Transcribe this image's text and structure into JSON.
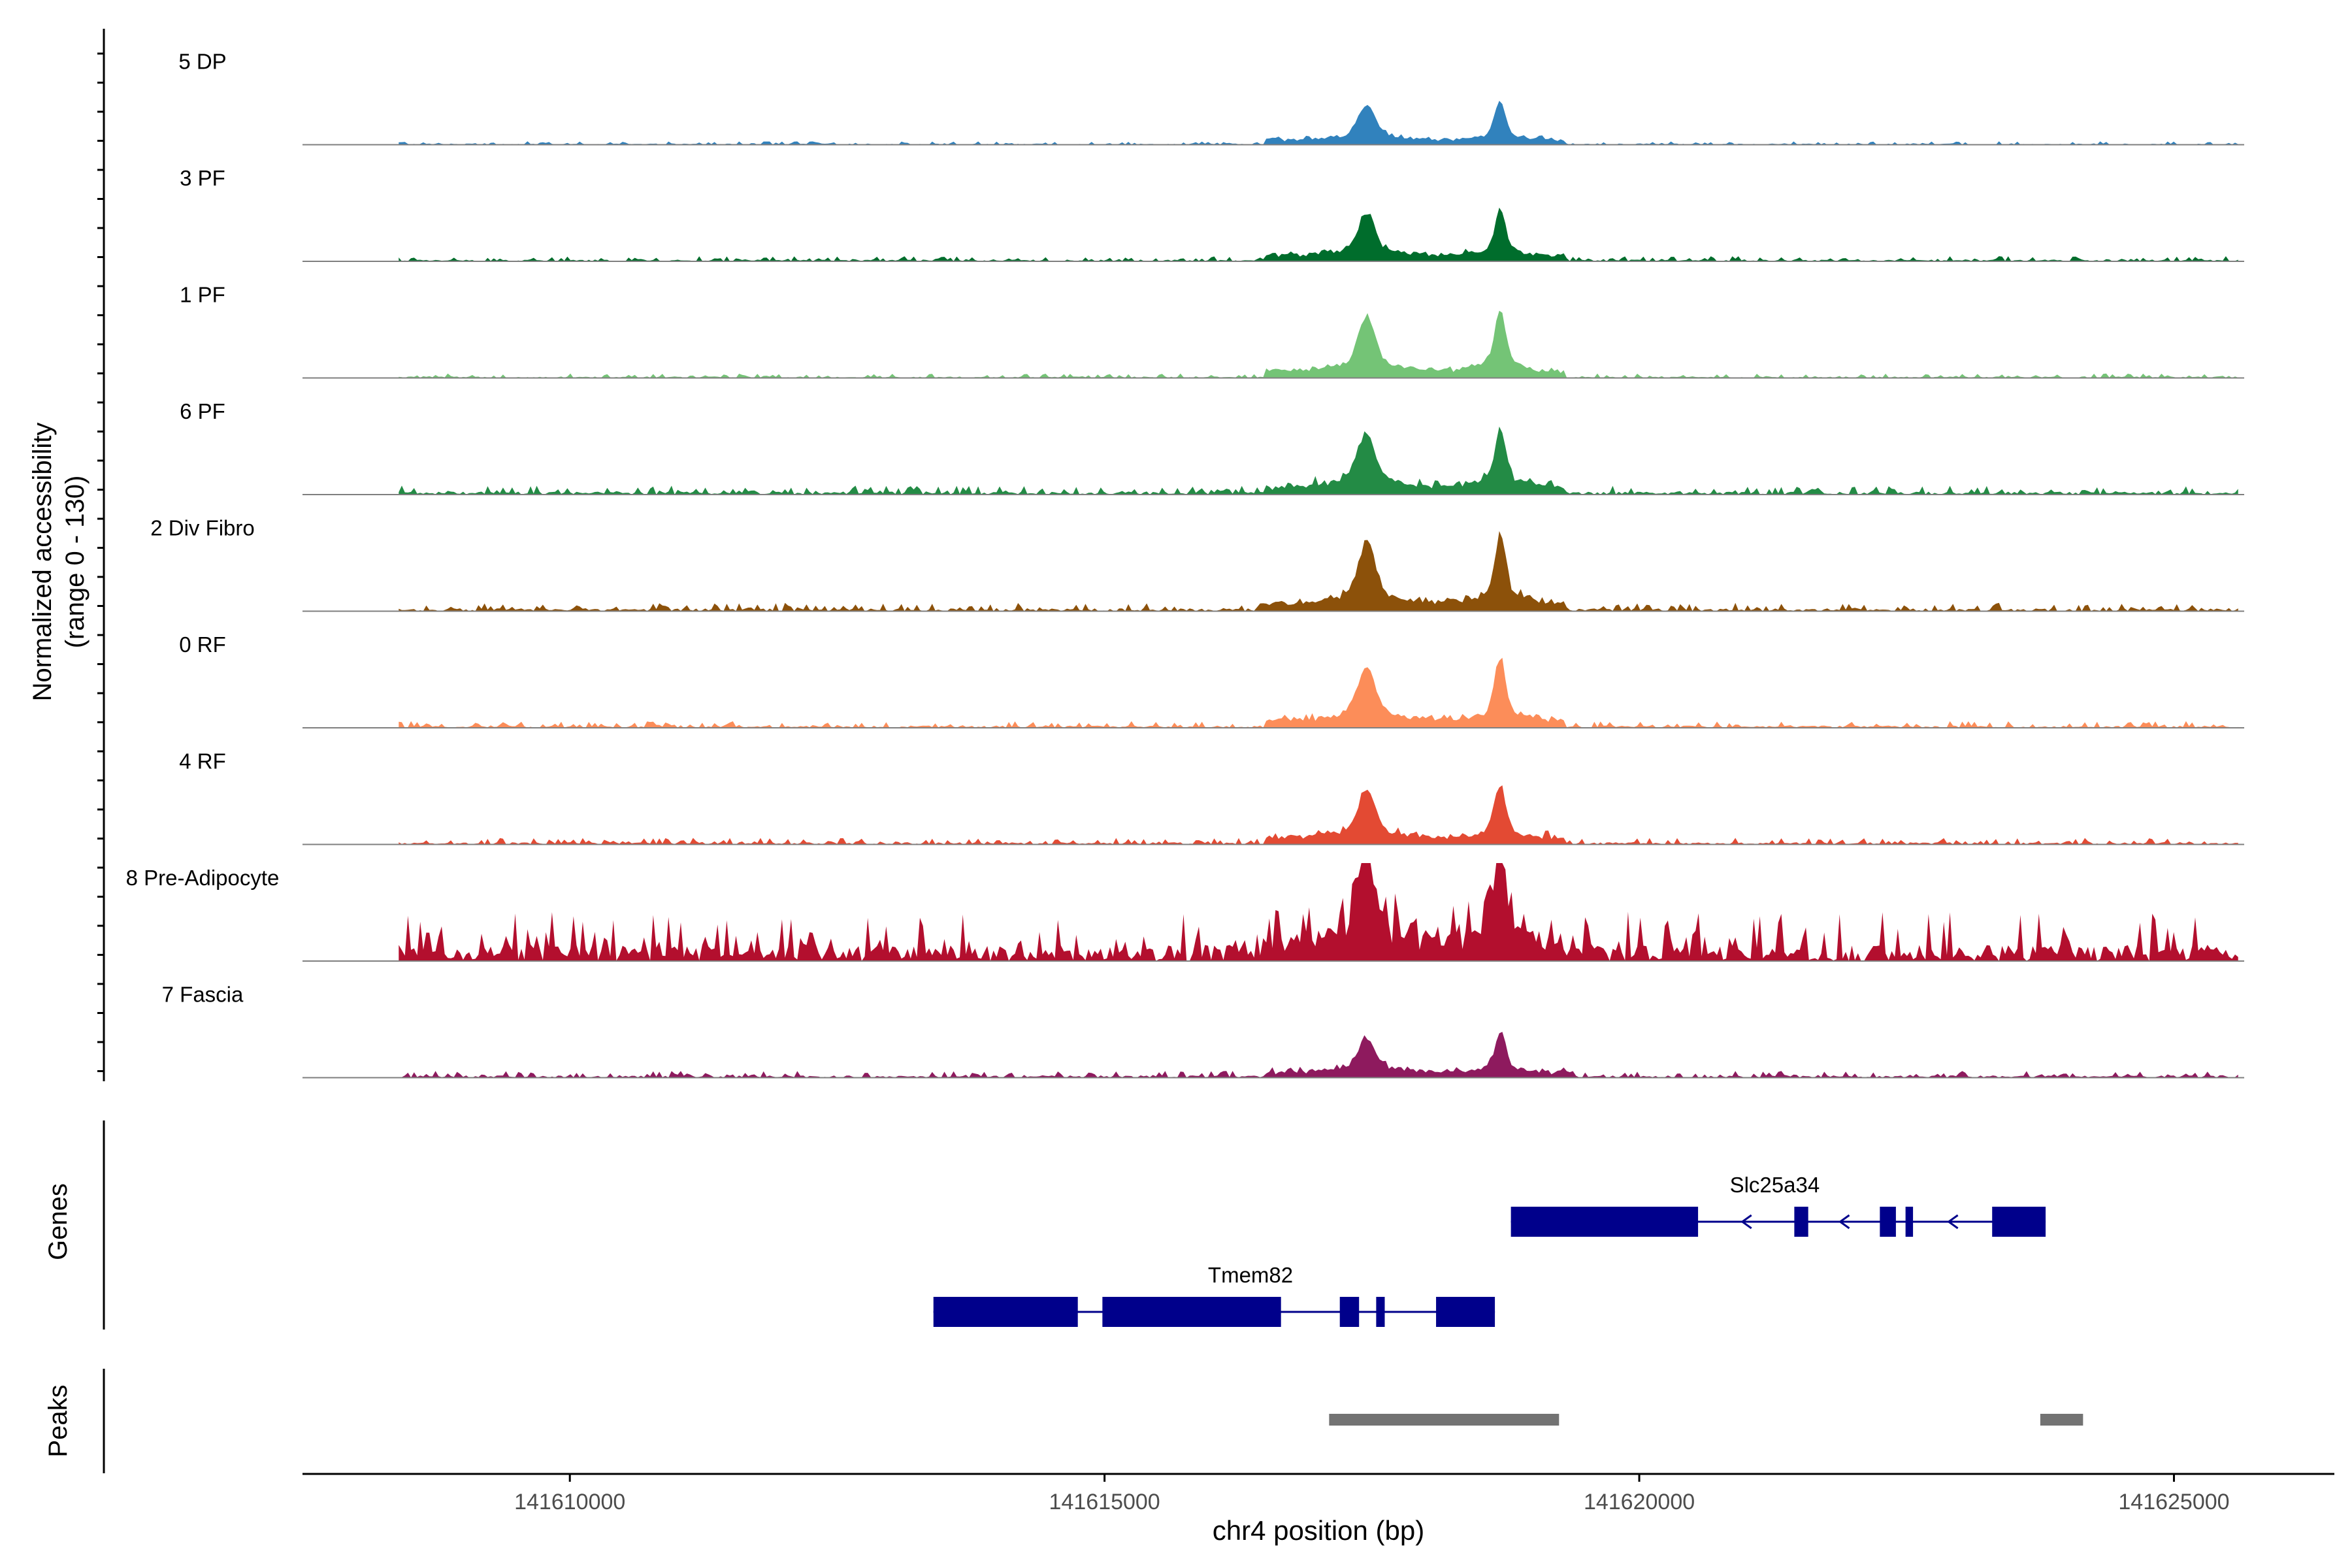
{
  "chart_data": {
    "type": "area",
    "region": "chr4",
    "y_axis_label": "Normalized accessibility",
    "y_axis_range_label": "(range 0 - 130)",
    "y_range": [
      0,
      130
    ],
    "x_axis_label": "chr4 position (bp)",
    "x_range": [
      141607500,
      141626500
    ],
    "x_ticks": [
      {
        "value": 141610000,
        "label": "141610000"
      },
      {
        "value": 141615000,
        "label": "141615000"
      },
      {
        "value": 141620000,
        "label": "141620000"
      },
      {
        "value": 141625000,
        "label": "141625000"
      }
    ],
    "track_range": [
      141608400,
      141625600
    ],
    "tracks": [
      {
        "name": "5 DP",
        "color": "#3182bd",
        "noise": 0.035,
        "scale": 0.55
      },
      {
        "name": "3 PF",
        "color": "#006d2c",
        "noise": 0.045,
        "scale": 0.65
      },
      {
        "name": "1 PF",
        "color": "#74c476",
        "noise": 0.03,
        "scale": 0.85
      },
      {
        "name": "6 PF",
        "color": "#238b45",
        "noise": 0.06,
        "scale": 0.85
      },
      {
        "name": "2 Div Fibro",
        "color": "#8c510a",
        "noise": 0.05,
        "scale": 0.95
      },
      {
        "name": "0 RF",
        "color": "#fc8d59",
        "noise": 0.045,
        "scale": 0.85
      },
      {
        "name": "4 RF",
        "color": "#e34a33",
        "noise": 0.05,
        "scale": 0.75
      },
      {
        "name": "8 Pre-Adipocyte",
        "color": "#b30f2e",
        "noise": 0.2,
        "scale": 1.4
      },
      {
        "name": "7 Fascia",
        "color": "#8e1a5e",
        "noise": 0.07,
        "scale": 0.55
      }
    ],
    "peaks_summits": [
      {
        "position": 141617450,
        "height": 0.55,
        "width": 110
      },
      {
        "position": 141618700,
        "height": 0.62,
        "width": 70
      }
    ],
    "genes_label": "Genes",
    "genes": [
      {
        "name": "Slc25a34",
        "strand": "-",
        "start": 141618800,
        "end": 141623800,
        "exons": [
          [
            141618800,
            141620550
          ],
          [
            141621450,
            141621580
          ],
          [
            141622250,
            141622400
          ],
          [
            141622490,
            141622560
          ],
          [
            141623300,
            141623800
          ]
        ]
      },
      {
        "name": "Tmem82",
        "strand": "+",
        "start": 141613400,
        "end": 141618650,
        "exons": [
          [
            141613400,
            141614750
          ],
          [
            141614980,
            141616650
          ],
          [
            141617200,
            141617380
          ],
          [
            141617540,
            141617620
          ],
          [
            141618100,
            141618650
          ]
        ]
      }
    ],
    "peaks_label": "Peaks",
    "peaks": [
      {
        "start": 141617100,
        "end": 141619250
      },
      {
        "start": 141623750,
        "end": 141624150
      }
    ]
  }
}
